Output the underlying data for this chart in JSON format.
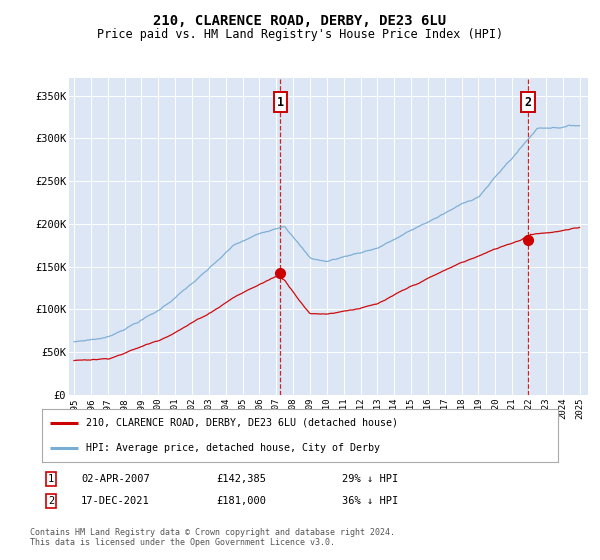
{
  "title": "210, CLARENCE ROAD, DERBY, DE23 6LU",
  "subtitle": "Price paid vs. HM Land Registry's House Price Index (HPI)",
  "background_color": "#ffffff",
  "plot_bg_color": "#dce6f5",
  "ylim": [
    0,
    370000
  ],
  "yticks": [
    0,
    50000,
    100000,
    150000,
    200000,
    250000,
    300000,
    350000
  ],
  "ytick_labels": [
    "£0",
    "£50K",
    "£100K",
    "£150K",
    "£200K",
    "£250K",
    "£300K",
    "£350K"
  ],
  "xstart_year": 1995,
  "xend_year": 2025,
  "sale1_date": 2007.25,
  "sale1_price": 142385,
  "sale1_label": "1",
  "sale1_date_str": "02-APR-2007",
  "sale1_price_str": "£142,385",
  "sale1_hpi_str": "29% ↓ HPI",
  "sale2_date": 2021.96,
  "sale2_price": 181000,
  "sale2_label": "2",
  "sale2_date_str": "17-DEC-2021",
  "sale2_price_str": "£181,000",
  "sale2_hpi_str": "36% ↓ HPI",
  "line1_color": "#cc0000",
  "line2_color": "#7aadd4",
  "legend1_label": "210, CLARENCE ROAD, DERBY, DE23 6LU (detached house)",
  "legend2_label": "HPI: Average price, detached house, City of Derby",
  "footnote": "Contains HM Land Registry data © Crown copyright and database right 2024.\nThis data is licensed under the Open Government Licence v3.0."
}
